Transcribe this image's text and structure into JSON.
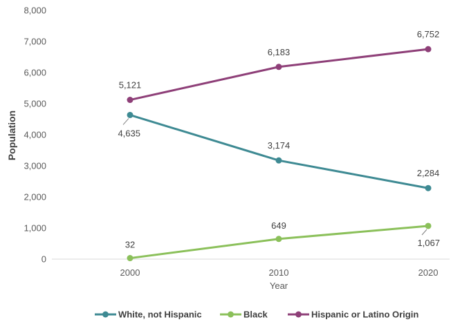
{
  "chart_data": {
    "type": "line",
    "x": [
      "2000",
      "2010",
      "2020"
    ],
    "xlabel": "Year",
    "ylabel": "Population",
    "ylim": [
      0,
      8000
    ],
    "yticks": [
      "0",
      "1,000",
      "2,000",
      "3,000",
      "4,000",
      "5,000",
      "6,000",
      "7,000",
      "8,000"
    ],
    "grid": false,
    "legend_position": "bottom",
    "series": [
      {
        "name": "White, not Hispanic",
        "color": "#3E8A93",
        "values": [
          4635,
          3174,
          2284
        ],
        "labels": [
          "4,635",
          "3,174",
          "2,284"
        ]
      },
      {
        "name": "Black",
        "color": "#8BC05A",
        "values": [
          32,
          649,
          1067
        ],
        "labels": [
          "32",
          "649",
          "1,067"
        ]
      },
      {
        "name": "Hispanic or Latino Origin",
        "color": "#8E3F78",
        "values": [
          5121,
          6183,
          6752
        ],
        "labels": [
          "5,121",
          "6,183",
          "6,752"
        ]
      }
    ]
  }
}
